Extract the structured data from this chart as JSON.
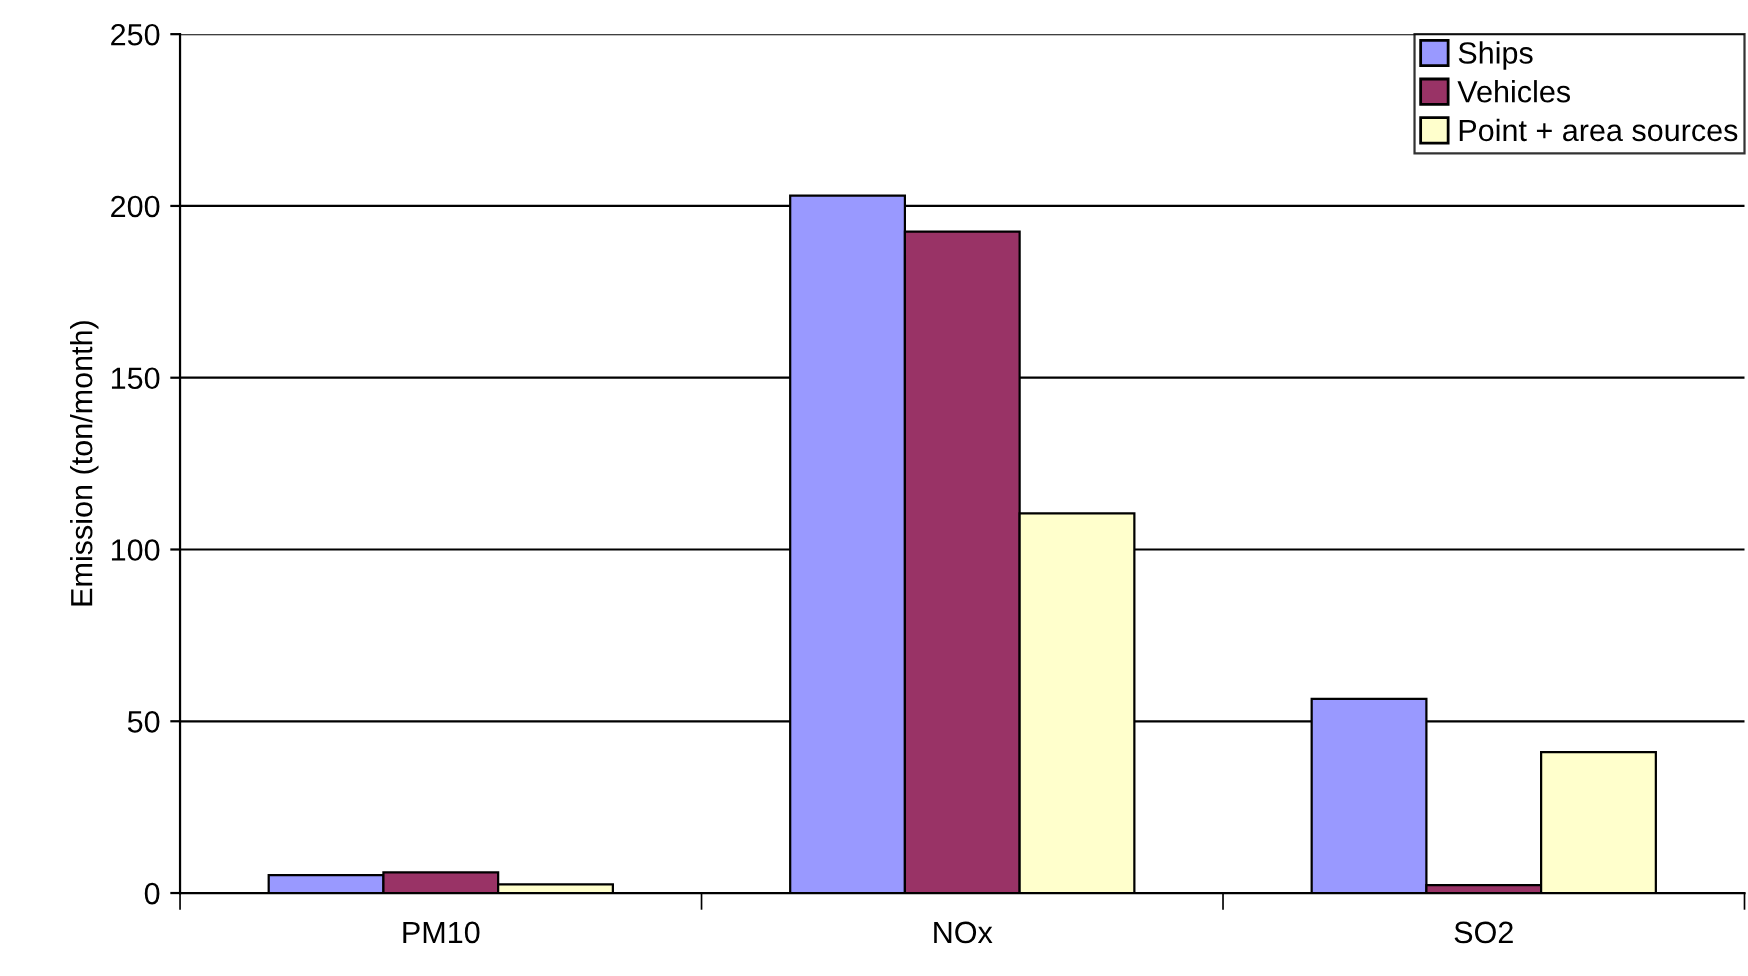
{
  "chart_data": {
    "type": "bar",
    "ylabel": "Emission (ton/month)",
    "categories": [
      "PM10",
      "NOx",
      "SO2"
    ],
    "series": [
      {
        "name": "Ships",
        "color": "#9999ff",
        "values": [
          5.2,
          203,
          56.5
        ]
      },
      {
        "name": "Vehicles",
        "color": "#993366",
        "values": [
          6,
          192.5,
          2.3
        ]
      },
      {
        "name": "Point + area sources",
        "color": "#ffffcc",
        "values": [
          2.5,
          110.5,
          41
        ]
      }
    ],
    "ylim": [
      0,
      250
    ],
    "yticks": [
      0,
      50,
      100,
      150,
      200,
      250
    ],
    "grid": "y",
    "legend": "top right"
  }
}
